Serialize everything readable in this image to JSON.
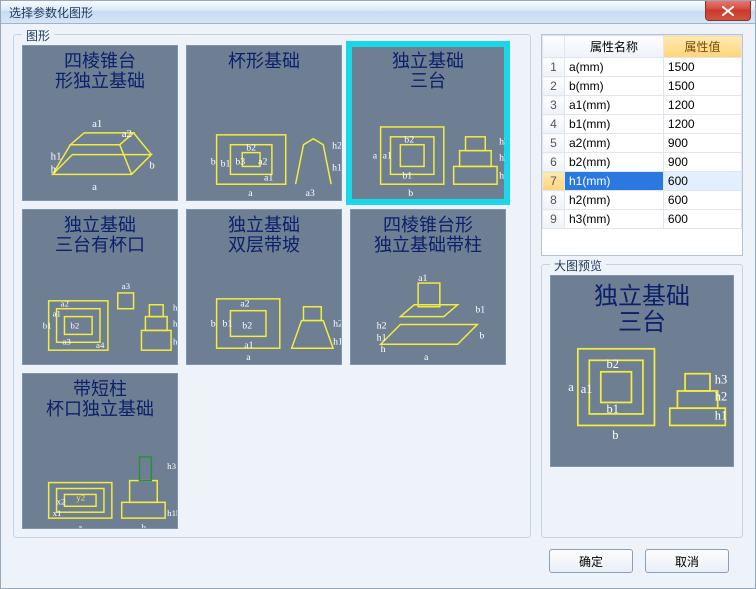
{
  "window": {
    "title": "选择参数化图形"
  },
  "shapes_group": {
    "legend": "图形"
  },
  "thumbs": [
    {
      "title": "四棱锥台\n形独立基础",
      "selected": false
    },
    {
      "title": "杯形基础",
      "selected": false
    },
    {
      "title": "独立基础\n三台",
      "selected": true
    },
    {
      "title": "独立基础\n三台有杯口",
      "selected": false
    },
    {
      "title": "独立基础\n双层带坡",
      "selected": false
    },
    {
      "title": "四棱锥台形\n独立基础带柱",
      "selected": false
    },
    {
      "title": "带短柱\n杯口独立基础",
      "selected": false
    }
  ],
  "table": {
    "headers": {
      "idx": "",
      "name": "属性名称",
      "value": "属性值"
    },
    "rows": [
      {
        "idx": "1",
        "name": "a(mm)",
        "value": "1500",
        "selected": false
      },
      {
        "idx": "2",
        "name": "b(mm)",
        "value": "1500",
        "selected": false
      },
      {
        "idx": "3",
        "name": "a1(mm)",
        "value": "1200",
        "selected": false
      },
      {
        "idx": "4",
        "name": "b1(mm)",
        "value": "1200",
        "selected": false
      },
      {
        "idx": "5",
        "name": "a2(mm)",
        "value": "900",
        "selected": false
      },
      {
        "idx": "6",
        "name": "b2(mm)",
        "value": "900",
        "selected": false
      },
      {
        "idx": "7",
        "name": "h1(mm)",
        "value": "600",
        "selected": true
      },
      {
        "idx": "8",
        "name": "h2(mm)",
        "value": "600",
        "selected": false
      },
      {
        "idx": "9",
        "name": "h3(mm)",
        "value": "600",
        "selected": false
      }
    ]
  },
  "preview": {
    "legend": "大图预览",
    "title": "独立基础\n三台"
  },
  "buttons": {
    "ok": "确定",
    "cancel": "取消"
  },
  "colors": {
    "bg": "#6e7f93",
    "title_text": "#0b1f6a",
    "outline": "#f5ed3b",
    "dim_text": "#ffffff",
    "selection_cyan": "#19d6e8"
  }
}
